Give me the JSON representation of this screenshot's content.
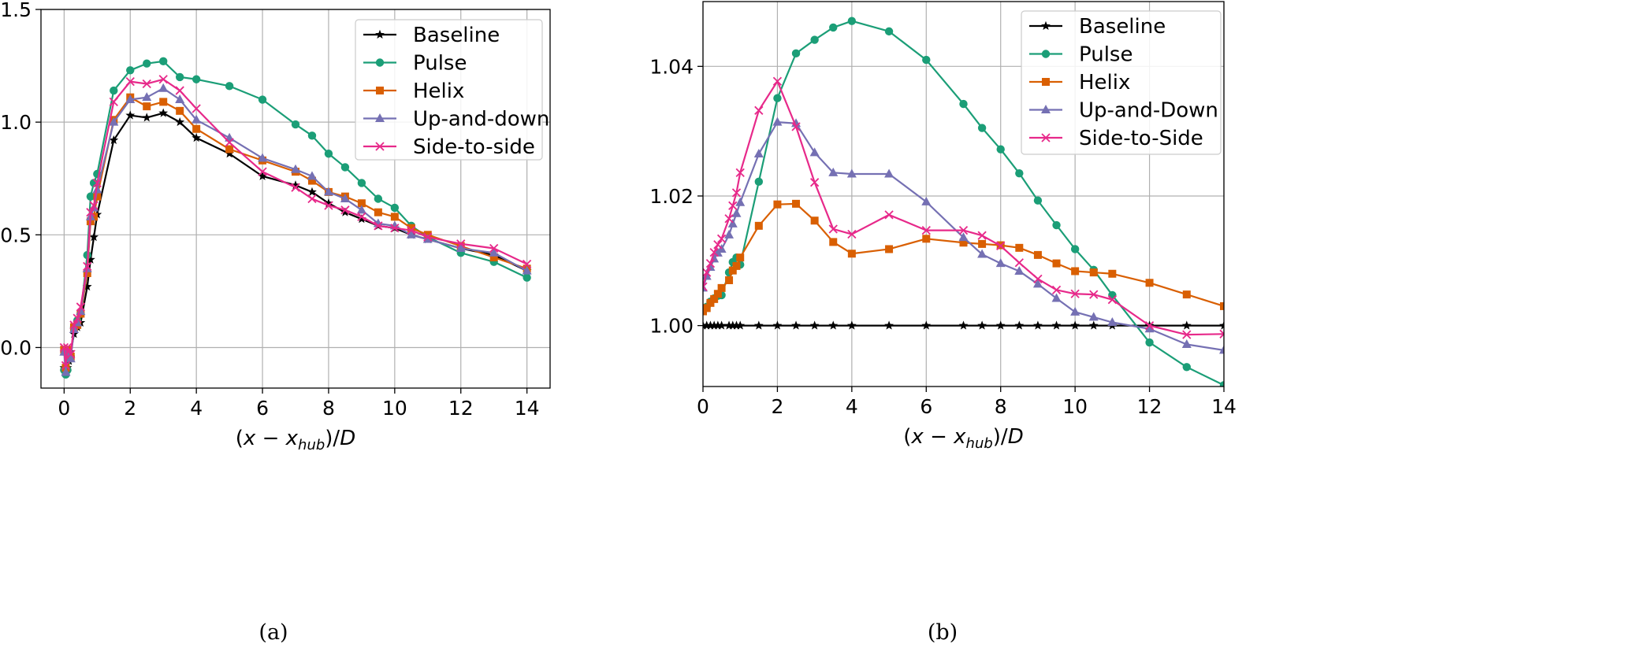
{
  "chart_data": [
    {
      "type": "line",
      "caption": "(a)",
      "xlabel": "(x − x_hub)/D",
      "xlabel_parts": [
        "(",
        "x",
        " − ",
        "x",
        "hub",
        ")/",
        "D"
      ],
      "xlim": [
        -0.7,
        14.7
      ],
      "ylim": [
        -0.18,
        1.5
      ],
      "xticks": [
        0,
        2,
        4,
        6,
        8,
        10,
        12,
        14
      ],
      "yticks": [
        0.0,
        0.5,
        1.0,
        1.5
      ],
      "ytick_labels": [
        "0.0",
        "0.5",
        "1.0",
        "1.5"
      ],
      "grid": true,
      "legend_position": "top-right",
      "series": [
        {
          "name": "Baseline",
          "color": "#000000",
          "marker": "star",
          "x": [
            0,
            0.05,
            0.1,
            0.15,
            0.2,
            0.3,
            0.4,
            0.5,
            0.7,
            0.8,
            0.9,
            1.0,
            1.5,
            2.0,
            2.5,
            3.0,
            3.5,
            4.0,
            5.0,
            6.0,
            7.0,
            7.5,
            8.0,
            8.5,
            9.0,
            9.5,
            10.0,
            10.5,
            11.0,
            12.0,
            13.0,
            14.0
          ],
          "y": [
            -0.09,
            -0.11,
            -0.09,
            -0.06,
            -0.02,
            0.06,
            0.09,
            0.11,
            0.27,
            0.39,
            0.49,
            0.59,
            0.92,
            1.03,
            1.02,
            1.04,
            1.0,
            0.93,
            0.86,
            0.76,
            0.72,
            0.69,
            0.64,
            0.6,
            0.57,
            0.54,
            0.53,
            0.5,
            0.48,
            0.44,
            0.41,
            0.34
          ]
        },
        {
          "name": "Pulse",
          "color": "#1b9e77",
          "marker": "circle",
          "x": [
            0,
            0.05,
            0.1,
            0.2,
            0.3,
            0.4,
            0.5,
            0.7,
            0.8,
            0.9,
            1.0,
            1.5,
            2.0,
            2.5,
            3.0,
            3.5,
            4.0,
            5.0,
            6.0,
            7.0,
            7.5,
            8.0,
            8.5,
            9.0,
            9.5,
            10.0,
            10.5,
            11.0,
            12.0,
            13.0,
            14.0
          ],
          "y": [
            -0.1,
            -0.12,
            -0.1,
            -0.04,
            0.09,
            0.12,
            0.15,
            0.41,
            0.67,
            0.73,
            0.77,
            1.14,
            1.23,
            1.26,
            1.27,
            1.2,
            1.19,
            1.16,
            1.1,
            0.99,
            0.94,
            0.86,
            0.8,
            0.73,
            0.66,
            0.62,
            0.54,
            0.49,
            0.42,
            0.38,
            0.31
          ]
        },
        {
          "name": "Helix",
          "color": "#d95f02",
          "marker": "square",
          "x": [
            0,
            0.05,
            0.1,
            0.2,
            0.3,
            0.4,
            0.5,
            0.7,
            0.8,
            0.9,
            1.0,
            1.5,
            2.0,
            2.5,
            3.0,
            3.5,
            4.0,
            5.0,
            6.0,
            7.0,
            7.5,
            8.0,
            8.5,
            9.0,
            9.5,
            10.0,
            10.5,
            11.0,
            12.0,
            13.0,
            14.0
          ],
          "y": [
            -0.01,
            -0.09,
            -0.01,
            -0.04,
            0.09,
            0.1,
            0.15,
            0.33,
            0.56,
            0.58,
            0.67,
            1.01,
            1.11,
            1.07,
            1.09,
            1.05,
            0.97,
            0.88,
            0.83,
            0.78,
            0.74,
            0.69,
            0.67,
            0.64,
            0.6,
            0.58,
            0.53,
            0.5,
            0.45,
            0.4,
            0.35
          ]
        },
        {
          "name": "Up-and-down",
          "color": "#7570b3",
          "marker": "triangle",
          "x": [
            0,
            0.05,
            0.1,
            0.2,
            0.3,
            0.4,
            0.5,
            0.7,
            0.8,
            0.9,
            1.0,
            1.5,
            2.0,
            2.5,
            3.0,
            3.5,
            4.0,
            5.0,
            6.0,
            7.0,
            7.5,
            8.0,
            8.5,
            9.0,
            9.5,
            10.0,
            10.5,
            11.0,
            12.0,
            13.0,
            14.0
          ],
          "y": [
            -0.02,
            -0.11,
            -0.02,
            -0.05,
            0.08,
            0.11,
            0.16,
            0.35,
            0.58,
            0.62,
            0.7,
            1.0,
            1.1,
            1.11,
            1.15,
            1.1,
            1.01,
            0.93,
            0.84,
            0.79,
            0.76,
            0.69,
            0.66,
            0.61,
            0.55,
            0.54,
            0.5,
            0.48,
            0.44,
            0.42,
            0.34
          ]
        },
        {
          "name": "Side-to-side",
          "color": "#e7298a",
          "marker": "x",
          "x": [
            0,
            0.05,
            0.1,
            0.2,
            0.3,
            0.4,
            0.5,
            0.7,
            0.8,
            0.9,
            1.0,
            1.5,
            2.0,
            2.5,
            3.0,
            3.5,
            4.0,
            5.0,
            6.0,
            7.0,
            7.5,
            8.0,
            8.5,
            9.0,
            9.5,
            10.0,
            10.5,
            11.0,
            12.0,
            13.0,
            14.0
          ],
          "y": [
            0.0,
            -0.08,
            0.0,
            -0.03,
            0.1,
            0.13,
            0.18,
            0.36,
            0.6,
            0.63,
            0.73,
            1.09,
            1.18,
            1.17,
            1.19,
            1.14,
            1.06,
            0.91,
            0.78,
            0.71,
            0.66,
            0.63,
            0.61,
            0.58,
            0.54,
            0.53,
            0.52,
            0.49,
            0.46,
            0.44,
            0.37
          ]
        }
      ]
    },
    {
      "type": "line",
      "caption": "(b)",
      "xlabel": "(x − x_hub)/D",
      "xlabel_parts": [
        "(",
        "x",
        " − ",
        "x",
        "hub",
        ")/",
        "D"
      ],
      "xlim": [
        0,
        14
      ],
      "ylim": [
        0.9906,
        1.05
      ],
      "xticks": [
        0,
        2,
        4,
        6,
        8,
        10,
        12,
        14
      ],
      "yticks": [
        1.0,
        1.02,
        1.04
      ],
      "ytick_labels": [
        "1.00",
        "1.02",
        "1.04"
      ],
      "grid": true,
      "legend_position": "top-right",
      "series": [
        {
          "name": "Baseline",
          "color": "#000000",
          "marker": "star",
          "x": [
            0,
            0.1,
            0.2,
            0.3,
            0.4,
            0.5,
            0.7,
            0.8,
            0.9,
            1.0,
            1.5,
            2.0,
            2.5,
            3.0,
            3.5,
            4.0,
            5.0,
            6.0,
            7.0,
            7.5,
            8.0,
            8.5,
            9.0,
            9.5,
            10.0,
            10.5,
            11.0,
            12.0,
            13.0,
            14.0
          ],
          "y": [
            1.0,
            1.0,
            1.0,
            1.0,
            1.0,
            1.0,
            1.0,
            1.0,
            1.0,
            1.0,
            1.0,
            1.0,
            1.0,
            1.0,
            1.0,
            1.0,
            1.0,
            1.0,
            1.0,
            1.0,
            1.0,
            1.0,
            1.0,
            1.0,
            1.0,
            1.0,
            1.0,
            1.0,
            1.0,
            1.0
          ]
        },
        {
          "name": "Pulse",
          "color": "#1b9e77",
          "marker": "circle",
          "x": [
            0,
            0.1,
            0.2,
            0.3,
            0.4,
            0.5,
            0.7,
            0.8,
            0.9,
            1.0,
            1.5,
            2.0,
            2.5,
            3.0,
            3.5,
            4.0,
            5.0,
            6.0,
            7.0,
            7.5,
            8.0,
            8.5,
            9.0,
            9.5,
            10.0,
            10.5,
            11.0,
            12.0,
            13.0,
            14.0
          ],
          "y": [
            1.0023,
            1.0029,
            1.0037,
            1.0042,
            1.0046,
            1.0047,
            1.0082,
            1.0098,
            1.0105,
            1.0094,
            1.0222,
            1.0351,
            1.042,
            1.0441,
            1.046,
            1.047,
            1.0454,
            1.041,
            1.0342,
            1.0305,
            1.0272,
            1.0235,
            1.0193,
            1.0155,
            1.0118,
            1.0086,
            1.0047,
            0.9974,
            0.9936,
            0.9908
          ]
        },
        {
          "name": "Helix",
          "color": "#d95f02",
          "marker": "square",
          "x": [
            0,
            0.1,
            0.2,
            0.3,
            0.4,
            0.5,
            0.7,
            0.8,
            0.9,
            1.0,
            1.5,
            2.0,
            2.5,
            3.0,
            3.5,
            4.0,
            5.0,
            6.0,
            7.0,
            7.5,
            8.0,
            8.5,
            9.0,
            9.5,
            10.0,
            10.5,
            11.0,
            12.0,
            13.0,
            14.0
          ],
          "y": [
            1.0022,
            1.0027,
            1.0035,
            1.0041,
            1.0049,
            1.0058,
            1.007,
            1.0085,
            1.0092,
            1.0105,
            1.0154,
            1.0187,
            1.0188,
            1.0162,
            1.0129,
            1.0111,
            1.0118,
            1.0134,
            1.0128,
            1.0126,
            1.0124,
            1.012,
            1.0109,
            1.0096,
            1.0084,
            1.0082,
            1.008,
            1.0066,
            1.0048,
            1.003
          ]
        },
        {
          "name": "Up-and-Down",
          "color": "#7570b3",
          "marker": "triangle",
          "x": [
            0,
            0.1,
            0.2,
            0.3,
            0.4,
            0.5,
            0.7,
            0.8,
            0.9,
            1.0,
            1.5,
            2.0,
            2.5,
            3.0,
            3.5,
            4.0,
            5.0,
            6.0,
            7.0,
            7.5,
            8.0,
            8.5,
            9.0,
            9.5,
            10.0,
            10.5,
            11.0,
            12.0,
            13.0,
            14.0
          ],
          "y": [
            1.0058,
            1.0076,
            1.009,
            1.0103,
            1.0112,
            1.0118,
            1.014,
            1.0157,
            1.0173,
            1.019,
            1.0265,
            1.0314,
            1.0312,
            1.0267,
            1.0236,
            1.0234,
            1.0234,
            1.0191,
            1.0136,
            1.011,
            1.0096,
            1.0084,
            1.0064,
            1.0042,
            1.0021,
            1.0013,
            1.0005,
            0.9995,
            0.9971,
            0.9962
          ]
        },
        {
          "name": "Side-to-Side",
          "color": "#e7298a",
          "marker": "x",
          "x": [
            0,
            0.1,
            0.2,
            0.3,
            0.4,
            0.5,
            0.7,
            0.8,
            0.9,
            1.0,
            1.5,
            2.0,
            2.5,
            3.0,
            3.5,
            4.0,
            5.0,
            6.0,
            7.0,
            7.5,
            8.0,
            8.5,
            9.0,
            9.5,
            10.0,
            10.5,
            11.0,
            12.0,
            13.0,
            14.0
          ],
          "y": [
            1.006,
            1.0082,
            1.0096,
            1.0113,
            1.0125,
            1.0134,
            1.0165,
            1.0185,
            1.0205,
            1.0236,
            1.0332,
            1.0377,
            1.0307,
            1.0221,
            1.0149,
            1.0141,
            1.0171,
            1.0147,
            1.0147,
            1.0139,
            1.0123,
            1.0097,
            1.0072,
            1.0055,
            1.0049,
            1.0048,
            1.004,
            1.0,
            0.9986,
            0.9987
          ]
        }
      ]
    }
  ]
}
